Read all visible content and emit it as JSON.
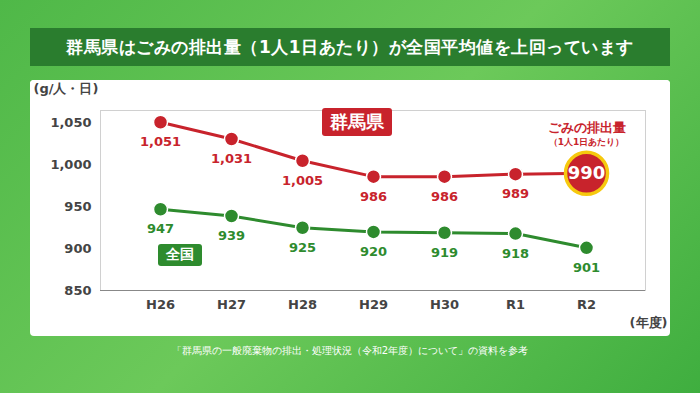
{
  "chart_data": {
    "type": "line",
    "title": "群馬県はごみの排出量（1人1日あたり）が全国平均値を上回っています",
    "y_label": "(g/人・日)",
    "x_label": "(年度)",
    "caption": "「群馬県の一般廃棄物の排出・処理状況（令和2年度）について」の資料を参考",
    "annotations": [
      "ごみの排出量",
      "（1人1日あたり）"
    ],
    "categories": [
      "H26",
      "H27",
      "H28",
      "H29",
      "H30",
      "R1",
      "R2"
    ],
    "series": [
      {
        "name": "群馬県",
        "color": "#c8232c",
        "marker": "circle",
        "values": [
          1051,
          1031,
          1005,
          986,
          986,
          989,
          990
        ],
        "value_labels": [
          "1,051",
          "1,031",
          "1,005",
          "986",
          "986",
          "989",
          "990"
        ]
      },
      {
        "name": "全国",
        "color": "#2e8b2e",
        "marker": "circle",
        "values": [
          947,
          939,
          925,
          920,
          919,
          918,
          901
        ]
      }
    ],
    "ylim": [
      850,
      1065
    ],
    "yticks": [
      850,
      900,
      950,
      {
        "value": 1000,
        "label": "1,000"
      },
      {
        "value": 1050,
        "label": "1,050"
      }
    ],
    "grid": false,
    "data_labels": true
  }
}
